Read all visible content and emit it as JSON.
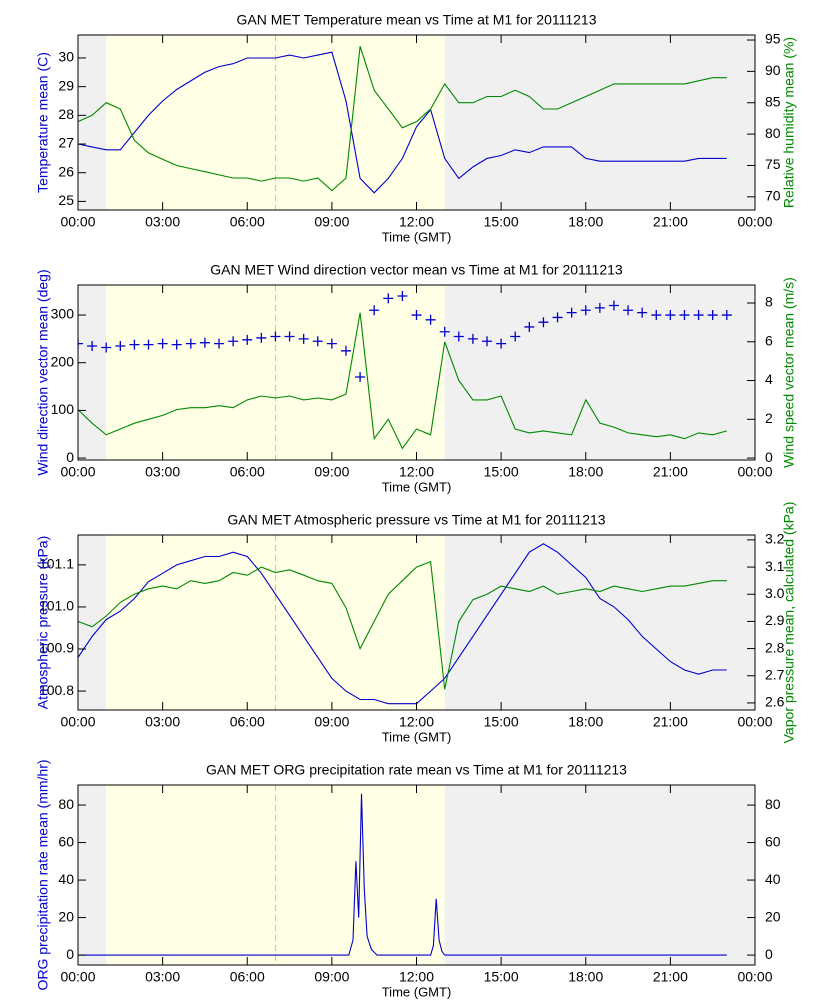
{
  "chart_data": [
    {
      "type": "line",
      "title": "GAN MET Temperature mean vs Time at M1 for 20111213",
      "xlabel": "Time (GMT)",
      "ylabel": "Temperature mean (C)",
      "y2label": "Relative humidity mean (%)",
      "xlim": [
        0,
        24
      ],
      "xticks": [
        {
          "value": 0,
          "label": "00:00"
        },
        {
          "value": 3,
          "label": "03:00"
        },
        {
          "value": 6,
          "label": "06:00"
        },
        {
          "value": 9,
          "label": "09:00"
        },
        {
          "value": 12,
          "label": "12:00"
        },
        {
          "value": 15,
          "label": "15:00"
        },
        {
          "value": 18,
          "label": "18:00"
        },
        {
          "value": 21,
          "label": "21:00"
        },
        {
          "value": 24,
          "label": "00:00"
        }
      ],
      "ylim": [
        24.7,
        30.8
      ],
      "yticks": [
        25,
        26,
        27,
        28,
        29,
        30
      ],
      "y2lim": [
        67.9,
        95.8
      ],
      "y2ticks": [
        70,
        75,
        80,
        85,
        90,
        95
      ],
      "bands": [
        {
          "from": 0,
          "to": 1,
          "color": "#f0f0f0"
        },
        {
          "from": 1,
          "to": 13,
          "color": "#ffffe6"
        },
        {
          "from": 13,
          "to": 24,
          "color": "#f0f0f0"
        }
      ],
      "marker_line": 7,
      "x": [
        0,
        0.5,
        1,
        1.5,
        2,
        2.5,
        3,
        3.5,
        4,
        4.5,
        5,
        5.5,
        6,
        6.5,
        7,
        7.5,
        8,
        8.5,
        9,
        9.5,
        10,
        10.5,
        11,
        11.5,
        12,
        12.5,
        13,
        13.5,
        14,
        14.5,
        15,
        15.5,
        16,
        16.5,
        17,
        17.5,
        18,
        18.5,
        19,
        19.5,
        20,
        20.5,
        21,
        21.5,
        22,
        22.5,
        23
      ],
      "series": [
        {
          "name": "Temperature mean",
          "color": "#0000cc",
          "values": [
            27.0,
            26.9,
            26.8,
            26.8,
            27.4,
            28.0,
            28.5,
            28.9,
            29.2,
            29.5,
            29.7,
            29.8,
            30.0,
            30.0,
            30.0,
            30.1,
            30.0,
            30.1,
            30.2,
            28.5,
            25.8,
            25.3,
            25.8,
            26.5,
            27.6,
            28.2,
            26.5,
            25.8,
            26.2,
            26.5,
            26.6,
            26.8,
            26.7,
            26.9,
            26.9,
            26.9,
            26.5,
            26.4,
            26.4,
            26.4,
            26.4,
            26.4,
            26.4,
            26.4,
            26.5,
            26.5,
            26.5
          ]
        },
        {
          "name": "Relative humidity mean",
          "color": "#008800",
          "axis": "y2",
          "values": [
            82,
            83,
            85,
            84,
            79,
            77,
            76,
            75,
            74.5,
            74,
            73.5,
            73,
            73,
            72.5,
            73,
            73,
            72.5,
            73,
            71,
            73,
            94,
            87,
            84,
            81,
            82,
            84,
            88,
            85,
            85,
            86,
            86,
            87,
            86,
            84,
            84,
            85,
            86,
            87,
            88,
            88,
            88,
            88,
            88,
            88,
            88.5,
            89,
            89
          ]
        }
      ]
    },
    {
      "type": "line",
      "title": "GAN MET Wind direction vector mean vs Time at M1 for 20111213",
      "xlabel": "Time (GMT)",
      "ylabel": "Wind direction vector mean (deg)",
      "y2label": "Wind speed vector mean (m/s)",
      "xlim": [
        0,
        24
      ],
      "xticks": [
        {
          "value": 0,
          "label": "00:00"
        },
        {
          "value": 3,
          "label": "03:00"
        },
        {
          "value": 6,
          "label": "06:00"
        },
        {
          "value": 9,
          "label": "09:00"
        },
        {
          "value": 12,
          "label": "12:00"
        },
        {
          "value": 15,
          "label": "15:00"
        },
        {
          "value": 18,
          "label": "18:00"
        },
        {
          "value": 21,
          "label": "21:00"
        },
        {
          "value": 24,
          "label": "00:00"
        }
      ],
      "ylim": [
        -4,
        363
      ],
      "yticks": [
        0,
        100,
        200,
        300
      ],
      "y2lim": [
        -0.1,
        8.93
      ],
      "y2ticks": [
        0,
        2,
        4,
        6,
        8
      ],
      "bands": [
        {
          "from": 0,
          "to": 1,
          "color": "#f0f0f0"
        },
        {
          "from": 1,
          "to": 13,
          "color": "#ffffe6"
        },
        {
          "from": 13,
          "to": 24,
          "color": "#f0f0f0"
        }
      ],
      "marker_line": 7,
      "x": [
        0,
        0.5,
        1,
        1.5,
        2,
        2.5,
        3,
        3.5,
        4,
        4.5,
        5,
        5.5,
        6,
        6.5,
        7,
        7.5,
        8,
        8.5,
        9,
        9.5,
        10,
        10.5,
        11,
        11.5,
        12,
        12.5,
        13,
        13.5,
        14,
        14.5,
        15,
        15.5,
        16,
        16.5,
        17,
        17.5,
        18,
        18.5,
        19,
        19.5,
        20,
        20.5,
        21,
        21.5,
        22,
        22.5,
        23
      ],
      "series": [
        {
          "name": "Wind direction vector mean",
          "color": "#0000cc",
          "marker": "+",
          "values": [
            240,
            235,
            232,
            235,
            238,
            238,
            240,
            238,
            240,
            242,
            240,
            245,
            248,
            252,
            255,
            255,
            250,
            245,
            240,
            225,
            170,
            310,
            335,
            340,
            300,
            290,
            265,
            255,
            250,
            245,
            240,
            255,
            275,
            285,
            295,
            305,
            310,
            315,
            320,
            310,
            305,
            300,
            300,
            300,
            300,
            300,
            300
          ]
        },
        {
          "name": "Wind speed vector mean",
          "color": "#008800",
          "axis": "y2",
          "values": [
            2.5,
            1.8,
            1.2,
            1.5,
            1.8,
            2.0,
            2.2,
            2.5,
            2.6,
            2.6,
            2.7,
            2.6,
            3.0,
            3.2,
            3.1,
            3.2,
            3.0,
            3.1,
            3.0,
            3.3,
            7.5,
            1.0,
            2.0,
            0.5,
            1.5,
            1.2,
            6.0,
            4.0,
            3.0,
            3.0,
            3.2,
            1.5,
            1.3,
            1.4,
            1.3,
            1.2,
            3.0,
            1.8,
            1.6,
            1.3,
            1.2,
            1.1,
            1.2,
            1.0,
            1.3,
            1.2,
            1.4
          ]
        }
      ]
    },
    {
      "type": "line",
      "title": "GAN MET Atmospheric pressure vs Time at M1 for 20111213",
      "xlabel": "Time (GMT)",
      "ylabel": "Atmospheric pressure (kPa)",
      "y2label": "Vapor pressure mean, calculated (kPa)",
      "xlim": [
        0,
        24
      ],
      "xticks": [
        {
          "value": 0,
          "label": "00:00"
        },
        {
          "value": 3,
          "label": "03:00"
        },
        {
          "value": 6,
          "label": "06:00"
        },
        {
          "value": 9,
          "label": "09:00"
        },
        {
          "value": 12,
          "label": "12:00"
        },
        {
          "value": 15,
          "label": "15:00"
        },
        {
          "value": 18,
          "label": "18:00"
        },
        {
          "value": 21,
          "label": "21:00"
        },
        {
          "value": 24,
          "label": "00:00"
        }
      ],
      "ylim": [
        100.755,
        101.171
      ],
      "yticks": [
        100.8,
        100.9,
        {
          "value": 101,
          "label": "101.0"
        },
        101.1
      ],
      "y2lim": [
        2.574,
        3.218
      ],
      "y2ticks": [
        2.6,
        2.7,
        2.8,
        2.9,
        {
          "value": 3,
          "label": "3.0"
        },
        3.1,
        3.2
      ],
      "bands": [
        {
          "from": 0,
          "to": 1,
          "color": "#f0f0f0"
        },
        {
          "from": 1,
          "to": 13,
          "color": "#ffffe6"
        },
        {
          "from": 13,
          "to": 24,
          "color": "#f0f0f0"
        }
      ],
      "marker_line": 7,
      "x": [
        0,
        0.5,
        1,
        1.5,
        2,
        2.5,
        3,
        3.5,
        4,
        4.5,
        5,
        5.5,
        6,
        6.5,
        7,
        7.5,
        8,
        8.5,
        9,
        9.5,
        10,
        10.5,
        11,
        11.5,
        12,
        12.5,
        13,
        13.5,
        14,
        14.5,
        15,
        15.5,
        16,
        16.5,
        17,
        17.5,
        18,
        18.5,
        19,
        19.5,
        20,
        20.5,
        21,
        21.5,
        22,
        22.5,
        23
      ],
      "series": [
        {
          "name": "Atmospheric pressure",
          "color": "#0000cc",
          "values": [
            100.88,
            100.93,
            100.97,
            100.99,
            101.02,
            101.06,
            101.08,
            101.1,
            101.11,
            101.12,
            101.12,
            101.13,
            101.12,
            101.08,
            101.03,
            100.98,
            100.93,
            100.88,
            100.83,
            100.8,
            100.78,
            100.78,
            100.77,
            100.77,
            100.77,
            100.8,
            100.83,
            100.88,
            100.93,
            100.98,
            101.03,
            101.08,
            101.13,
            101.15,
            101.13,
            101.1,
            101.07,
            101.02,
            101.0,
            100.97,
            100.93,
            100.9,
            100.87,
            100.85,
            100.84,
            100.85,
            100.85
          ]
        },
        {
          "name": "Vapor pressure mean, calculated",
          "color": "#008800",
          "axis": "y2",
          "values": [
            2.9,
            2.88,
            2.92,
            2.97,
            3.0,
            3.02,
            3.03,
            3.02,
            3.05,
            3.04,
            3.05,
            3.08,
            3.07,
            3.1,
            3.08,
            3.09,
            3.07,
            3.05,
            3.04,
            2.95,
            2.8,
            2.9,
            3.0,
            3.05,
            3.1,
            3.12,
            2.65,
            2.9,
            2.98,
            3.0,
            3.03,
            3.02,
            3.01,
            3.03,
            3.0,
            3.01,
            3.02,
            3.01,
            3.03,
            3.02,
            3.01,
            3.02,
            3.03,
            3.03,
            3.04,
            3.05,
            3.05
          ]
        }
      ]
    },
    {
      "type": "line",
      "title": "GAN MET ORG precipitation rate mean vs Time at M1 for 20111213",
      "xlabel": "Time (GMT)",
      "ylabel": "ORG precipitation rate mean (mm/hr)",
      "xlim": [
        0,
        24
      ],
      "xticks": [
        {
          "value": 0,
          "label": "00:00"
        },
        {
          "value": 3,
          "label": "03:00"
        },
        {
          "value": 6,
          "label": "06:00"
        },
        {
          "value": 9,
          "label": "09:00"
        },
        {
          "value": 12,
          "label": "12:00"
        },
        {
          "value": 15,
          "label": "15:00"
        },
        {
          "value": 18,
          "label": "18:00"
        },
        {
          "value": 21,
          "label": "21:00"
        },
        {
          "value": 24,
          "label": "00:00"
        }
      ],
      "ylim": [
        -5.3,
        90.7
      ],
      "yticks": [
        0,
        20,
        40,
        60,
        80
      ],
      "y2lim": [
        -5.3,
        90.7
      ],
      "y2ticks": [
        0,
        20,
        40,
        60,
        80
      ],
      "bands": [
        {
          "from": 0,
          "to": 1,
          "color": "#f0f0f0"
        },
        {
          "from": 1,
          "to": 13,
          "color": "#ffffe6"
        },
        {
          "from": 13,
          "to": 24,
          "color": "#f0f0f0"
        }
      ],
      "marker_line": 7,
      "x": [
        0,
        1,
        2,
        3,
        4,
        5,
        6,
        7,
        8,
        9,
        9.6,
        9.75,
        9.85,
        9.95,
        10.05,
        10.15,
        10.25,
        10.4,
        10.6,
        11,
        12,
        12.5,
        12.6,
        12.7,
        12.8,
        12.9,
        13,
        14,
        15,
        16,
        17,
        18,
        19,
        20,
        21,
        22,
        23
      ],
      "series": [
        {
          "name": "ORG precipitation rate mean",
          "color": "#0000cc",
          "values": [
            0,
            0,
            0,
            0,
            0,
            0,
            0,
            0,
            0,
            0,
            0,
            8,
            50,
            20,
            86,
            35,
            10,
            3,
            0,
            0,
            0,
            0,
            5,
            30,
            8,
            2,
            0,
            0,
            0,
            0,
            0,
            0,
            0,
            0,
            0,
            0,
            0
          ]
        }
      ]
    }
  ]
}
